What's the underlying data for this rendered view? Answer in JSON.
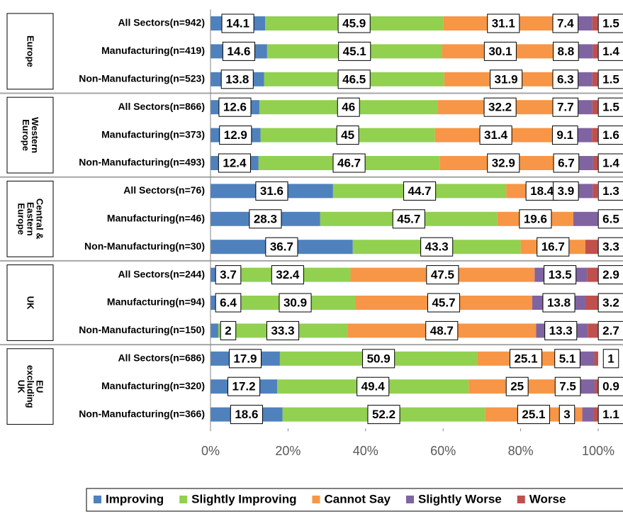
{
  "chart_data": {
    "type": "stacked-barh",
    "groups": [
      {
        "label": [
          "Europe"
        ],
        "categories": [
          "All Sectors(n=942)",
          "Manufacturing(n=419)",
          "Non-Manufacturing(n=523)"
        ]
      },
      {
        "label": [
          "Western",
          "Europe"
        ],
        "categories": [
          "All Sectors(n=866)",
          "Manufacturing(n=373)",
          "Non-Manufacturing(n=493)"
        ]
      },
      {
        "label": [
          "Central &",
          "Eastern",
          "Europe"
        ],
        "categories": [
          "All Sectors(n=76)",
          "Manufacturing(n=46)",
          "Non-Manufacturing(n=30)"
        ]
      },
      {
        "label": [
          "UK"
        ],
        "categories": [
          "All Sectors(n=244)",
          "Manufacturing(n=94)",
          "Non-Manufacturing(n=150)"
        ]
      },
      {
        "label": [
          "EU",
          "excluding",
          "UK"
        ],
        "categories": [
          "All Sectors(n=686)",
          "Manufacturing(n=320)",
          "Non-Manufacturing(n=366)"
        ]
      }
    ],
    "series": [
      {
        "name": "Improving",
        "color": "#4f81bd",
        "values": [
          14.1,
          14.6,
          13.8,
          12.6,
          12.9,
          12.4,
          31.6,
          28.3,
          36.7,
          3.7,
          6.4,
          2.0,
          17.9,
          17.2,
          18.6
        ]
      },
      {
        "name": "Slightly Improving",
        "color": "#92d050",
        "values": [
          45.9,
          45.1,
          46.5,
          46.0,
          45.0,
          46.7,
          44.7,
          45.7,
          43.3,
          32.4,
          30.9,
          33.3,
          50.9,
          49.4,
          52.2
        ]
      },
      {
        "name": "Cannot Say",
        "color": "#f79646",
        "values": [
          31.1,
          30.1,
          31.9,
          32.2,
          31.4,
          32.9,
          18.4,
          19.6,
          16.7,
          47.5,
          45.7,
          48.7,
          25.1,
          25.0,
          25.1
        ]
      },
      {
        "name": "Slightly Worse",
        "color": "#8064a2",
        "values": [
          7.4,
          8.8,
          6.3,
          7.7,
          9.1,
          6.7,
          3.9,
          6.5,
          0,
          13.5,
          13.8,
          13.3,
          5.1,
          7.5,
          3.0
        ]
      },
      {
        "name": "Worse",
        "color": "#c0504d",
        "values": [
          1.5,
          1.4,
          1.5,
          1.5,
          1.6,
          1.4,
          1.3,
          0,
          3.3,
          2.9,
          3.2,
          2.7,
          1.0,
          0.9,
          1.1
        ]
      }
    ],
    "xlim": [
      0,
      100
    ],
    "xticks": [
      {
        "value": 0,
        "label": "0%"
      },
      {
        "value": 20,
        "label": "20%"
      },
      {
        "value": 40,
        "label": "40%"
      },
      {
        "value": 60,
        "label": "60%"
      },
      {
        "value": 80,
        "label": "80%"
      },
      {
        "value": 100,
        "label": "100%"
      }
    ],
    "legend": "bottom"
  }
}
